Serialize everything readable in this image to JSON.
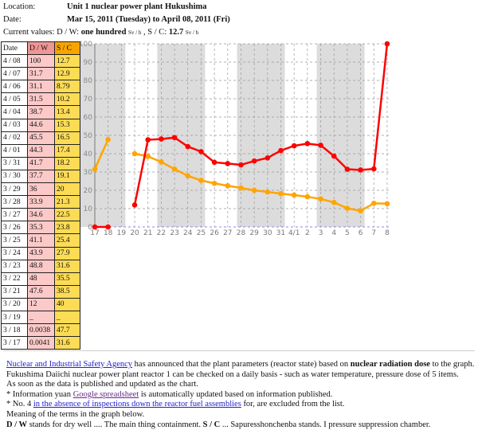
{
  "header": {
    "location_label": "Location:",
    "location": "Unit 1 nuclear power plant Hukushima",
    "date_label": "Date:",
    "date": "Mar 15, 2011 (Tuesday) to April 08, 2011 (Fri)",
    "current_label": "Current values:",
    "dw_label": "D / W:",
    "dw_value": "one hundred",
    "unit": "Sv / h",
    "sep": ", S / C:",
    "sc_value": "12.7"
  },
  "table": {
    "headers": [
      "Date",
      "D / W",
      "S / C"
    ],
    "rows": [
      [
        "4 / 08",
        "100",
        "12.7"
      ],
      [
        "4 / 07",
        "31.7",
        "12.9"
      ],
      [
        "4 / 06",
        "31.1",
        "8.79"
      ],
      [
        "4 / 05",
        "31.5",
        "10.2"
      ],
      [
        "4 / 04",
        "38.7",
        "13.4"
      ],
      [
        "4 / 03",
        "44.6",
        "15.3"
      ],
      [
        "4 / 02",
        "45.5",
        "16.5"
      ],
      [
        "4 / 01",
        "44.3",
        "17.4"
      ],
      [
        "3 / 31",
        "41.7",
        "18.2"
      ],
      [
        "3 / 30",
        "37.7",
        "19.1"
      ],
      [
        "3 / 29",
        "36",
        "20"
      ],
      [
        "3 / 28",
        "33.9",
        "21.3"
      ],
      [
        "3 / 27",
        "34.6",
        "22.5"
      ],
      [
        "3 / 26",
        "35.3",
        "23.8"
      ],
      [
        "3 / 25",
        "41.1",
        "25.4"
      ],
      [
        "3 / 24",
        "43.9",
        "27.9"
      ],
      [
        "3 / 23",
        "48.8",
        "31.6"
      ],
      [
        "3 / 22",
        "48",
        "35.5"
      ],
      [
        "3 / 21",
        "47.6",
        "38.5"
      ],
      [
        "3 / 20",
        "12",
        "40"
      ],
      [
        "3 / 19",
        "_",
        "_"
      ],
      [
        "3 / 18",
        "0.0038",
        "47.7"
      ],
      [
        "3 / 17",
        "0.0041",
        "31.6"
      ]
    ]
  },
  "chart_data": {
    "type": "line",
    "title": "",
    "xlabel": "",
    "ylabel": "",
    "ylim": [
      0,
      100
    ],
    "yticks": [
      "0",
      "10",
      "20",
      "30",
      "40",
      "50",
      "60",
      "70",
      "80",
      "90",
      "100"
    ],
    "categories": [
      "17",
      "18",
      "19",
      "20",
      "21",
      "22",
      "23",
      "24",
      "25",
      "26",
      "27",
      "28",
      "29",
      "30",
      "31",
      "4/1",
      "2",
      "3",
      "4",
      "5",
      "6",
      "7",
      "8"
    ],
    "shaded_ranges": [
      [
        0,
        2
      ],
      [
        5,
        8
      ],
      [
        11,
        14
      ],
      [
        17,
        20
      ]
    ],
    "series": [
      {
        "name": "D / W",
        "color": "#ff0000",
        "values": [
          0.0041,
          0.0038,
          null,
          12,
          47.6,
          48,
          48.8,
          43.9,
          41.1,
          35.3,
          34.6,
          33.9,
          36,
          37.7,
          41.7,
          44.3,
          45.5,
          44.6,
          38.7,
          31.5,
          31.1,
          31.7,
          100
        ]
      },
      {
        "name": "S / C",
        "color": "#ffa500",
        "values": [
          31.6,
          47.7,
          null,
          40,
          38.5,
          35.5,
          31.6,
          27.9,
          25.4,
          23.8,
          22.5,
          21.3,
          20,
          19.1,
          18.2,
          17.4,
          16.5,
          15.3,
          13.4,
          10.2,
          8.79,
          12.9,
          12.7
        ]
      }
    ]
  },
  "notes": {
    "l1_link": "Nuclear and Industrial Safety Agency",
    "l1_a": " has announced that the plant parameters (reactor state) based on ",
    "l1_b": "nuclear radiation dose",
    "l1_c": " to the graph.",
    "l2": "Fukushima Daiichi nuclear power plant reactor 1 can be checked on a daily basis - such as water temperature, pressure dose of 5 items.",
    "l3": "As soon as the data is published and updated as the chart.",
    "l4_a": "* Information yuan ",
    "l4_link": "Google spreadsheet",
    "l4_b": " is automatically updated based on information published.",
    "l5_a": "* No. 4 ",
    "l5_link": "in the absence of inspections down the reactor fuel assemblies",
    "l5_b": " for, are excluded from the list.",
    "l6": "Meaning of the terms in the graph below.",
    "l7_a": "D / W",
    "l7_b": " stands for dry well .... The main thing containment. ",
    "l7_c": "S / C",
    "l7_d": " ... Sapuresshonchenba stands. I pressure suppression chamber."
  }
}
